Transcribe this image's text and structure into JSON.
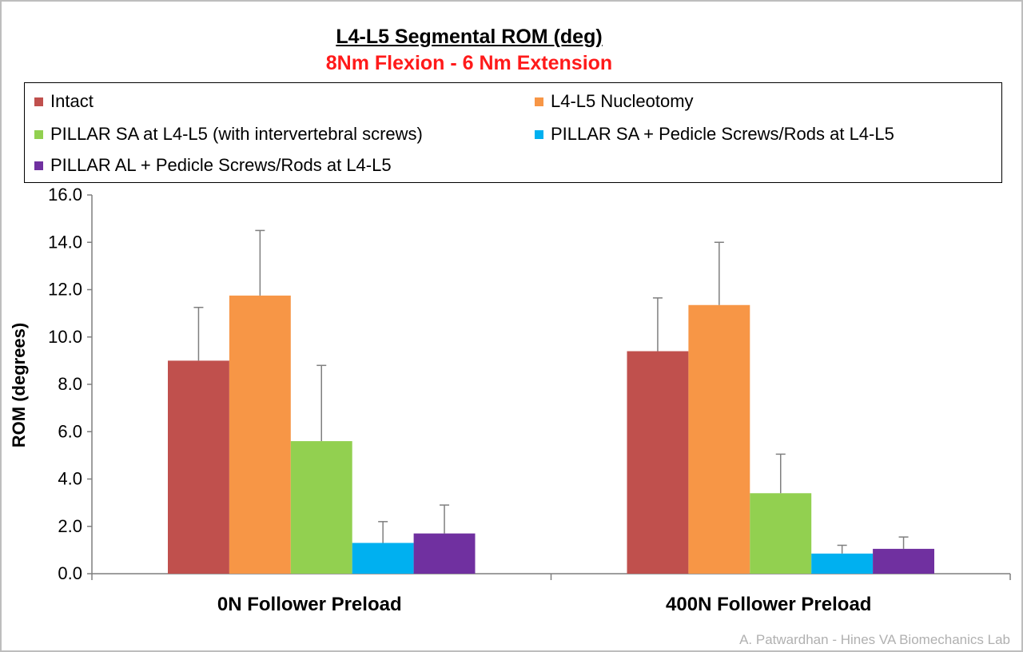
{
  "chart_data": {
    "type": "bar",
    "title": "L4-L5 Segmental ROM (deg)",
    "subtitle": "8Nm Flexion - 6 Nm Extension",
    "ylabel": "ROM (degrees)",
    "xlabel": "",
    "ylim": [
      0,
      16
    ],
    "yticks": [
      "0.0",
      "2.0",
      "4.0",
      "6.0",
      "8.0",
      "10.0",
      "12.0",
      "14.0",
      "16.0"
    ],
    "categories": [
      "0N Follower Preload",
      "400N Follower Preload"
    ],
    "series": [
      {
        "name": "Intact",
        "color": "#c0504d",
        "values": [
          9.0,
          9.4
        ],
        "errors": [
          2.25,
          2.25
        ]
      },
      {
        "name": "L4-L5 Nucleotomy",
        "color": "#f79646",
        "values": [
          11.75,
          11.35
        ],
        "errors": [
          2.75,
          2.65
        ]
      },
      {
        "name": "PILLAR SA at L4-L5 (with intervertebral screws)",
        "color": "#92d050",
        "values": [
          5.6,
          3.4
        ],
        "errors": [
          3.2,
          1.65
        ]
      },
      {
        "name": "PILLAR SA + Pedicle Screws/Rods at L4-L5",
        "color": "#00b0f0",
        "values": [
          1.3,
          0.85
        ],
        "errors": [
          0.9,
          0.35
        ]
      },
      {
        "name": "PILLAR AL + Pedicle Screws/Rods at L4-L5",
        "color": "#7030a0",
        "values": [
          1.7,
          1.05
        ],
        "errors": [
          1.2,
          0.5
        ]
      }
    ],
    "legend_position": "top",
    "grid": false
  },
  "watermark": "A. Patwardhan - Hines VA Biomechanics Lab"
}
